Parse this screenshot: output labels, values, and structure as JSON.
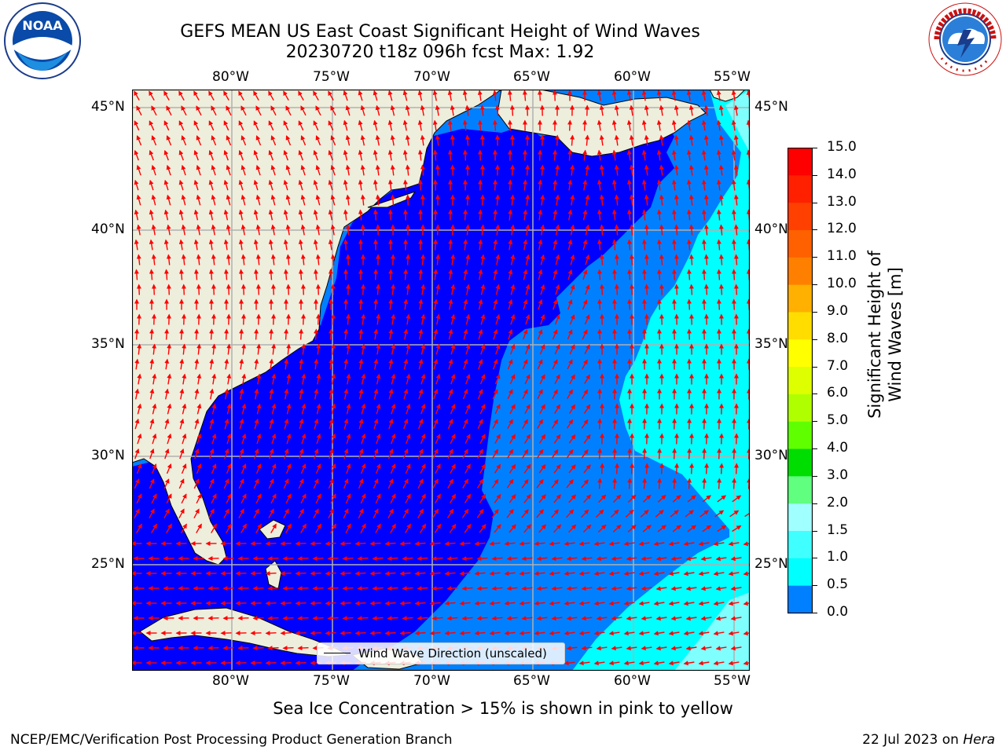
{
  "title": {
    "line1": "GEFS MEAN US East Coast Significant Height of Wind Waves",
    "line2": "20230720 t18z 096h fcst   Max: 1.92"
  },
  "logos": {
    "noaa_text": "NOAA",
    "noaa_ring_text": "NATIONAL OCEANIC AND ATMOSPHERIC ADMINISTRATION • U.S. DEPARTMENT OF COMMERCE",
    "nws_ring_text": "NATIONAL WEATHER SERVICE"
  },
  "map": {
    "lon_labels": [
      "80°W",
      "75°W",
      "70°W",
      "65°W",
      "60°W",
      "55°W"
    ],
    "lat_labels": [
      "45°N",
      "40°N",
      "35°N",
      "30°N",
      "25°N"
    ],
    "legend_label": "Wind Wave Direction (unscaled)",
    "colors": {
      "land": "#eeeedc",
      "ocean_dark": "#0000ff",
      "ocean_mid": "#0080ff",
      "ocean_cyan": "#00ffff",
      "ocean_lightcyan": "#80ffff",
      "arrows": "#ff0000",
      "grid": "#b0b0b0"
    }
  },
  "colorbar": {
    "label": "Significant Height of Wind Waves [m]",
    "ticks": [
      "15.0",
      "14.0",
      "13.0",
      "12.0",
      "11.0",
      "10.0",
      "9.0",
      "8.0",
      "7.0",
      "6.0",
      "5.0",
      "4.0",
      "3.0",
      "2.0",
      "1.5",
      "1.0",
      "0.5",
      "0.0"
    ],
    "colors": [
      "#ff0000",
      "#ff2000",
      "#ff4000",
      "#ff6000",
      "#ff8000",
      "#ffb000",
      "#ffdd00",
      "#ffff00",
      "#ddff00",
      "#b0ff00",
      "#60ff00",
      "#00dd00",
      "#00ff00",
      "#60ff80",
      "#a0ffff",
      "#40ffff",
      "#00ffff",
      "#0080ff",
      "#0000ff"
    ]
  },
  "note": "Sea Ice Concentration > 15% is shown in pink to yellow",
  "footer": {
    "left": "NCEP/EMC/Verification Post Processing Product Generation Branch",
    "right_date": "22 Jul 2023 on ",
    "right_host": "Hera"
  }
}
